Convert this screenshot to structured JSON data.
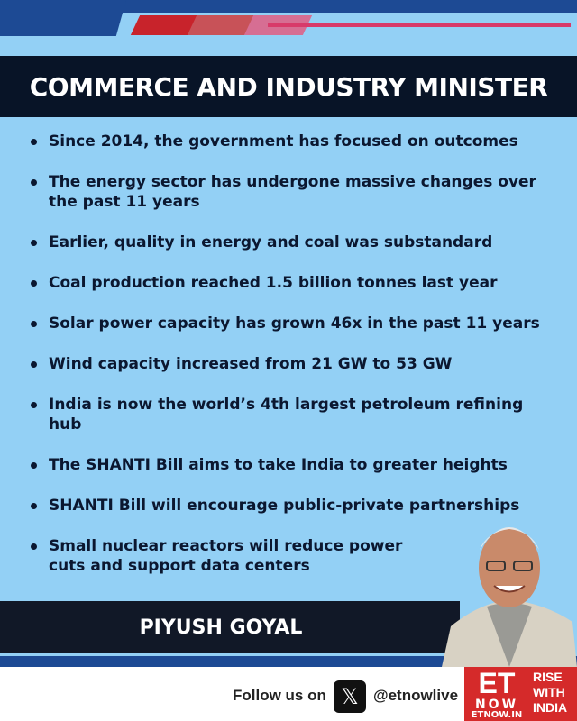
{
  "header": {
    "title": "COMMERCE AND INDUSTRY MINISTER"
  },
  "points": [
    "Since 2014, the government has focused on outcomes",
    "The energy sector has undergone massive changes over the past 11 years",
    "Earlier, quality in energy and coal was substandard",
    "Coal production reached 1.5 billion tonnes last year",
    "Solar power capacity has grown 46x in the past 11 years",
    "Wind capacity increased from 21 GW to 53 GW",
    "India is now the world’s 4th largest petroleum refining hub",
    "The SHANTI Bill aims to take India to greater heights",
    "SHANTI Bill will encourage public-private partnerships",
    "Small nuclear reactors will reduce power cuts and support data centers"
  ],
  "speaker": {
    "name": "PIYUSH GOYAL"
  },
  "footer": {
    "follow": "Follow us on",
    "social_icon": "x-logo-icon",
    "handle": "@etnowlive"
  },
  "logo": {
    "et": "ET",
    "now": "NOW",
    "site": "ETNOW.IN",
    "tagline": [
      "RISE",
      "WITH",
      "INDIA"
    ]
  },
  "colors": {
    "navy": "#081427",
    "sky": "#93d0f5",
    "blue": "#1d4a94",
    "red": "#d52a2a"
  }
}
